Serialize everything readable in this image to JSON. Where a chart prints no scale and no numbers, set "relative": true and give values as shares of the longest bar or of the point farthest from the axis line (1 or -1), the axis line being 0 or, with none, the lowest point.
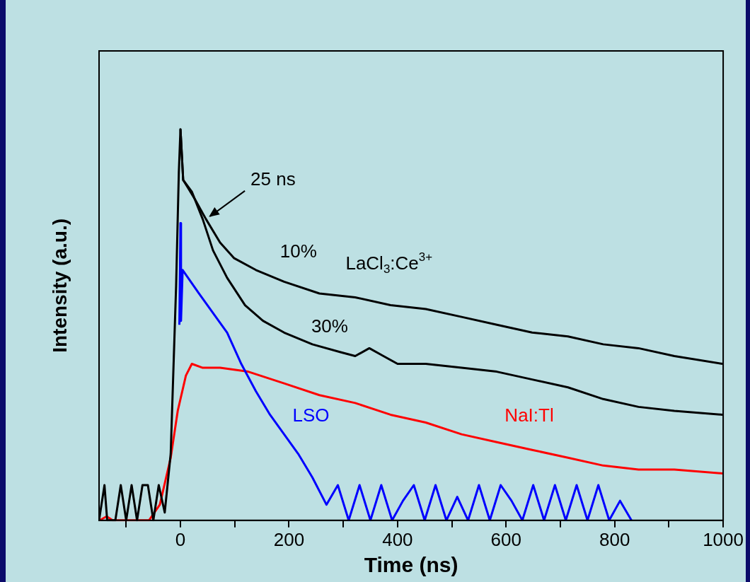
{
  "chart_data": {
    "type": "line",
    "xlabel": "Time (ns)",
    "ylabel": "Intensity (a.u.)",
    "relative": true,
    "xlim": [
      -150,
      1000
    ],
    "xticks": [
      {
        "value": -100,
        "label": null
      },
      0,
      {
        "value": 100,
        "label": null
      },
      200,
      {
        "value": 300,
        "label": null
      },
      400,
      {
        "value": 500,
        "label": null
      },
      600,
      {
        "value": 700,
        "label": null
      },
      800,
      {
        "value": 900,
        "label": null
      },
      1000
    ],
    "grid": false,
    "legend": false,
    "marker": "none",
    "line_style": "solid",
    "series": [
      {
        "name": "10%",
        "color": "#000000",
        "x": [
          -150,
          -140,
          -135,
          -120,
          -110,
          -100,
          -90,
          -80,
          -70,
          -60,
          -50,
          -40,
          -29,
          -18,
          -8,
          -3,
          0,
          5,
          14,
          27,
          47,
          73,
          99,
          139,
          191,
          256,
          322,
          387,
          452,
          518,
          583,
          648,
          714,
          779,
          844,
          910,
          999
        ],
        "values": [
          0,
          0.09,
          0,
          0,
          0.09,
          0,
          0.09,
          0,
          0.09,
          0.09,
          0,
          0.09,
          0.02,
          0.17,
          0.6,
          0.89,
          1.0,
          0.87,
          0.85,
          0.82,
          0.77,
          0.71,
          0.67,
          0.64,
          0.61,
          0.58,
          0.57,
          0.55,
          0.54,
          0.52,
          0.5,
          0.48,
          0.47,
          0.45,
          0.44,
          0.42,
          0.4
        ]
      },
      {
        "name": "30%",
        "color": "#000000",
        "x": [
          0,
          5,
          21,
          41,
          60,
          86,
          119,
          152,
          191,
          243,
          295,
          322,
          348,
          374,
          400,
          452,
          518,
          583,
          648,
          714,
          779,
          844,
          910,
          999
        ],
        "values": [
          1.0,
          0.87,
          0.84,
          0.77,
          0.69,
          0.62,
          0.55,
          0.51,
          0.48,
          0.45,
          0.43,
          0.42,
          0.44,
          0.42,
          0.4,
          0.4,
          0.39,
          0.38,
          0.36,
          0.34,
          0.31,
          0.29,
          0.28,
          0.27
        ]
      },
      {
        "name": "LSO",
        "color": "#0000ff",
        "x": [
          -2,
          0,
          1,
          4,
          34,
          60,
          86,
          112,
          139,
          165,
          191,
          217,
          243,
          269,
          290,
          310,
          330,
          350,
          370,
          390,
          410,
          430,
          450,
          470,
          490,
          510,
          530,
          550,
          570,
          590,
          610,
          630,
          650,
          670,
          690,
          710,
          730,
          750,
          770,
          790,
          810,
          831
        ],
        "values": [
          0.5,
          0.76,
          0.51,
          0.64,
          0.58,
          0.53,
          0.48,
          0.4,
          0.33,
          0.27,
          0.22,
          0.17,
          0.11,
          0.04,
          0.09,
          0,
          0.09,
          0,
          0.09,
          0,
          0.05,
          0.09,
          0,
          0.09,
          0,
          0.06,
          0,
          0.09,
          0,
          0.09,
          0.05,
          0,
          0.09,
          0,
          0.09,
          0,
          0.09,
          0,
          0.09,
          0,
          0.05,
          0
        ]
      },
      {
        "name": "NaI:Tl",
        "color": "#ff0000",
        "x": [
          -149,
          -136,
          -125,
          -58,
          -38,
          -18,
          -5,
          10,
          21,
          41,
          73,
          125,
          191,
          256,
          322,
          387,
          452,
          518,
          583,
          648,
          714,
          779,
          844,
          910,
          999
        ],
        "values": [
          0,
          0.01,
          0,
          0,
          0.04,
          0.16,
          0.28,
          0.37,
          0.4,
          0.39,
          0.39,
          0.38,
          0.35,
          0.32,
          0.3,
          0.27,
          0.25,
          0.22,
          0.2,
          0.18,
          0.16,
          0.14,
          0.13,
          0.13,
          0.12
        ]
      }
    ],
    "annotations": [
      {
        "text": "25 ns",
        "x": 47,
        "y": 0.77
      },
      "LaCl$_{3}$:Ce$^{3+}$"
    ]
  }
}
